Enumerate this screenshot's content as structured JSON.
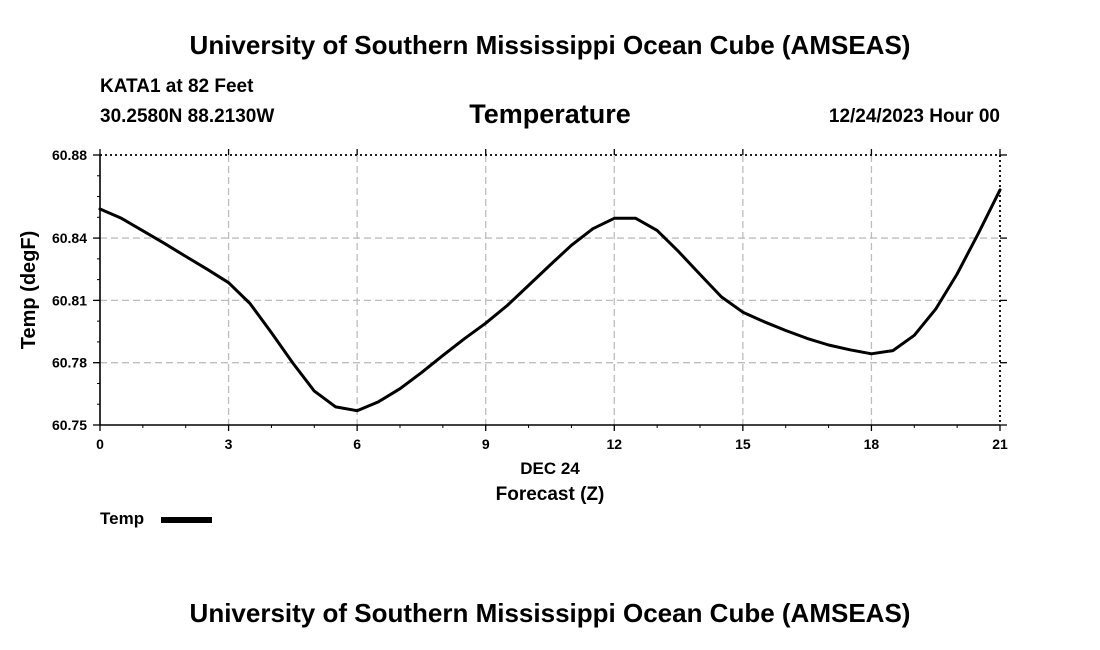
{
  "header": {
    "title": "University of Southern Mississippi Ocean Cube (AMSEAS)",
    "station": "KATA1 at 82 Feet",
    "coords": "30.2580N  88.2130W",
    "chart_title": "Temperature",
    "date": "12/24/2023 Hour 00"
  },
  "footer": {
    "title": "University of Southern Mississippi Ocean Cube (AMSEAS)"
  },
  "legend": {
    "label": "Temp"
  },
  "chart_data": {
    "type": "line",
    "title": "Temperature",
    "xlabel": "Forecast (Z)",
    "xlabel_date": "DEC 24",
    "ylabel": "Temp (degF)",
    "xlim": [
      0,
      21
    ],
    "ylim": [
      60.75,
      60.88
    ],
    "x_ticks": [
      0,
      3,
      6,
      9,
      12,
      15,
      18,
      21
    ],
    "x_tick_labels": [
      "0",
      "3",
      "6",
      "9",
      "12",
      "15",
      "18",
      "21"
    ],
    "y_ticks": [
      60.75,
      60.78,
      60.81,
      60.84,
      60.88
    ],
    "y_tick_labels": [
      "60.75",
      "60.78",
      "60.81",
      "60.84",
      "60.88"
    ],
    "grid": true,
    "series": [
      {
        "name": "Temp",
        "color": "#000000",
        "x": [
          0,
          0.5,
          1,
          1.5,
          2,
          2.5,
          3,
          3.5,
          4,
          4.5,
          5,
          5.5,
          6,
          6.5,
          7,
          7.5,
          8,
          8.5,
          9,
          9.5,
          10,
          10.5,
          11,
          11.5,
          12,
          12.5,
          13,
          13.5,
          14,
          14.5,
          15,
          15.5,
          16,
          16.5,
          17,
          17.5,
          18,
          18.5,
          19,
          19.5,
          20,
          20.5,
          21
        ],
        "values": [
          60.854,
          60.8495,
          60.8435,
          60.8375,
          60.8312,
          60.825,
          60.8185,
          60.8085,
          60.7945,
          60.7798,
          60.7663,
          60.7587,
          60.7569,
          60.7612,
          60.7675,
          60.7752,
          60.7835,
          60.7915,
          60.799,
          60.8075,
          60.8172,
          60.827,
          60.8365,
          60.8445,
          60.8495,
          60.8495,
          60.8437,
          60.8335,
          60.8225,
          60.8117,
          60.8043,
          60.7997,
          60.7955,
          60.7917,
          60.7885,
          60.7862,
          60.7843,
          60.7858,
          60.7932,
          60.8058,
          60.8227,
          60.8425,
          60.8632
        ]
      }
    ]
  }
}
